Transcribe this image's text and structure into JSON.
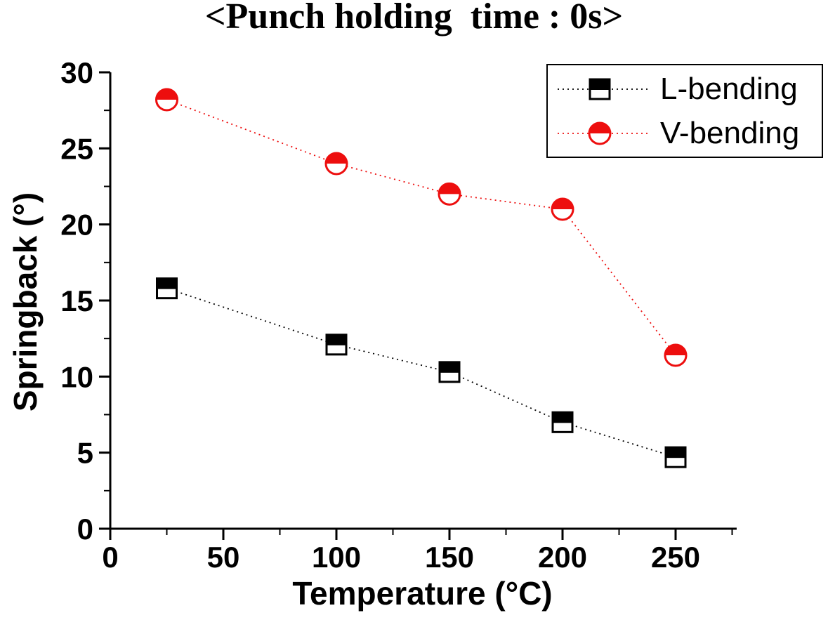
{
  "title": "<Punch holding  time : 0s>",
  "colors": {
    "l_bending": "#000000",
    "v_bending": "#ed0e0e",
    "axis": "#000000",
    "background": "#ffffff"
  },
  "chart_data": {
    "type": "line",
    "title": "<Punch holding  time : 0s>",
    "xlabel": "Temperature (°C)",
    "ylabel": "Springback (°)",
    "x": [
      25,
      100,
      150,
      200,
      250
    ],
    "series": [
      {
        "name": "L-bending",
        "color": "#000000",
        "marker": "half-filled-square",
        "line_style": "dotted",
        "values": [
          15.8,
          12.1,
          10.3,
          7.0,
          4.7
        ]
      },
      {
        "name": "V-bending",
        "color": "#ed0e0e",
        "marker": "half-filled-circle",
        "line_style": "dotted",
        "values": [
          28.2,
          24.0,
          22.0,
          21.0,
          11.4
        ]
      }
    ],
    "xlim": [
      0,
      277
    ],
    "ylim": [
      0,
      30
    ],
    "x_major_ticks": [
      0,
      50,
      100,
      150,
      200,
      250
    ],
    "x_minor_ticks": [
      25,
      75,
      125,
      175,
      225,
      275
    ],
    "y_major_ticks": [
      0,
      5,
      10,
      15,
      20,
      25,
      30
    ],
    "y_minor_ticks": [
      2.5,
      7.5,
      12.5,
      17.5,
      22.5,
      27.5
    ],
    "grid": false,
    "legend_position": "top-right"
  }
}
